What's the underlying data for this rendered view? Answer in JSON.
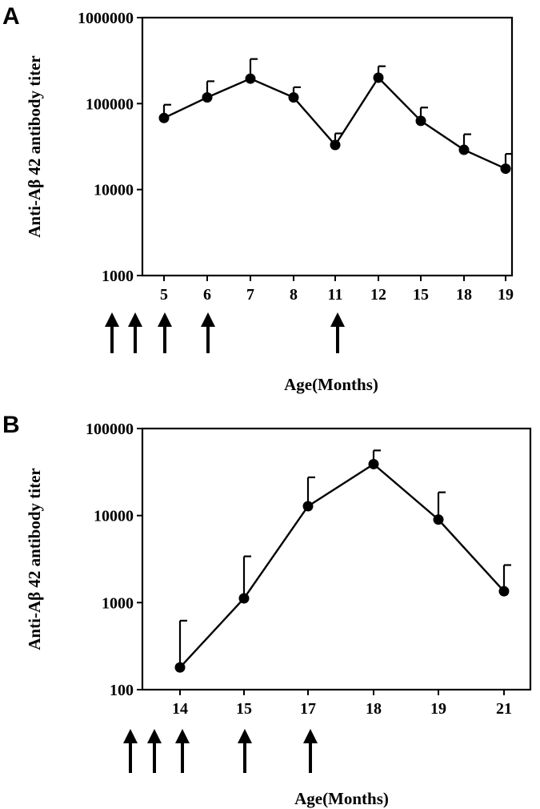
{
  "colors": {
    "ink": "#000000",
    "background": "#ffffff"
  },
  "chart_data": [
    {
      "panel_label": "A",
      "type": "line",
      "yscale": "log",
      "ylim": [
        1000,
        1000000
      ],
      "y_ticks": [
        "1000",
        "10000",
        "100000",
        "1000000"
      ],
      "categories": [
        "5",
        "6",
        "7",
        "8",
        "11",
        "12",
        "15",
        "18",
        "19"
      ],
      "series": [
        {
          "values": [
            68000,
            118000,
            195000,
            118000,
            33000,
            200000,
            63000,
            29000,
            17500
          ],
          "error_upper": [
            97000,
            182000,
            330000,
            155000,
            45000,
            272000,
            90000,
            44000,
            26000
          ]
        }
      ],
      "ylabel": "Anti-Aβ 42 antibody titer",
      "xlabel": "Age(Months)",
      "immunization_arrows": [
        "before-5",
        "before-5",
        "5",
        "6",
        "11"
      ],
      "grid": false,
      "legend": "none"
    },
    {
      "panel_label": "B",
      "type": "line",
      "yscale": "log",
      "ylim": [
        100,
        100000
      ],
      "y_ticks": [
        "100",
        "1000",
        "10000",
        "100000"
      ],
      "categories": [
        "14",
        "15",
        "17",
        "18",
        "19",
        "21"
      ],
      "series": [
        {
          "values": [
            180,
            1120,
            12800,
            39000,
            9000,
            1350
          ],
          "error_upper": [
            620,
            3400,
            27500,
            56000,
            18500,
            2700
          ]
        }
      ],
      "ylabel": "Anti-Aβ 42 antibody titer",
      "xlabel": "Age(Months)",
      "immunization_arrows": [
        "before-14",
        "before-14",
        "14",
        "15",
        "17"
      ],
      "grid": false,
      "legend": "none"
    }
  ]
}
